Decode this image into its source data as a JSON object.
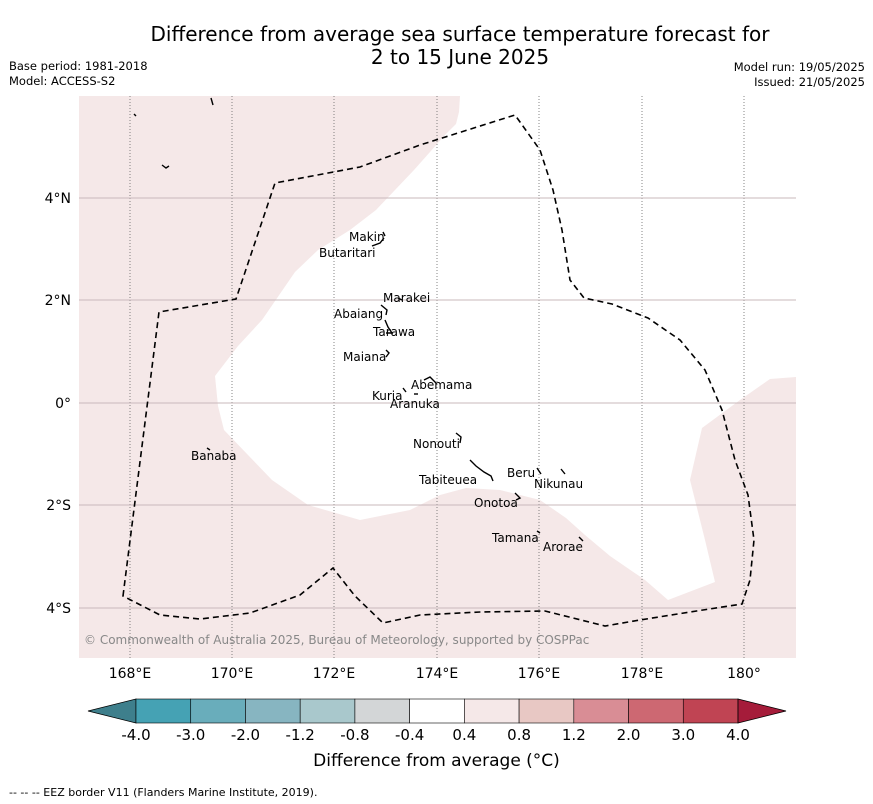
{
  "title": {
    "line1": "Difference from average sea surface temperature forecast for",
    "line2": "2 to 15 June 2025"
  },
  "meta": {
    "base_period": "Base period: 1981-2018",
    "model": "Model: ACCESS-S2",
    "model_run": "Model run: 19/05/2025",
    "issued": "Issued: 21/05/2025"
  },
  "map": {
    "lon_ticks": [
      "168°E",
      "170°E",
      "172°E",
      "174°E",
      "176°E",
      "178°E",
      "180°"
    ],
    "lat_ticks": [
      "4°N",
      "2°N",
      "0°",
      "2°S",
      "4°S"
    ],
    "copyright": "© Commonwealth of Australia 2025, Bureau of Meteorology, supported by COSPPac",
    "islands": [
      "Makin",
      "Butaritari",
      "Marakei",
      "Abaiang",
      "Tarawa",
      "Maiana",
      "Abemama",
      "Kuria",
      "Aranuka",
      "Nonouti",
      "Banaba",
      "Tabiteuea",
      "Beru",
      "Nikunau",
      "Onotoa",
      "Tamana",
      "Arorae"
    ],
    "background_color": "#f5e8e8",
    "eez_color": "#000000"
  },
  "colorbar": {
    "ticks": [
      "-4.0",
      "-3.0",
      "-2.0",
      "-1.2",
      "-0.8",
      "-0.4",
      "0.4",
      "0.8",
      "1.2",
      "2.0",
      "3.0",
      "4.0"
    ],
    "colors": [
      "#3e7f8c",
      "#45a2b4",
      "#69adbb",
      "#87b5c1",
      "#a9c8cc",
      "#d3d6d7",
      "#ffffff",
      "#f5e8e8",
      "#e8c8c4",
      "#d98d95",
      "#cd6872",
      "#c04453",
      "#a51c3a"
    ],
    "label": "Difference from average (°C)"
  },
  "footer": "-- -- -- EEZ border V11 (Flanders Marine Institute, 2019)."
}
